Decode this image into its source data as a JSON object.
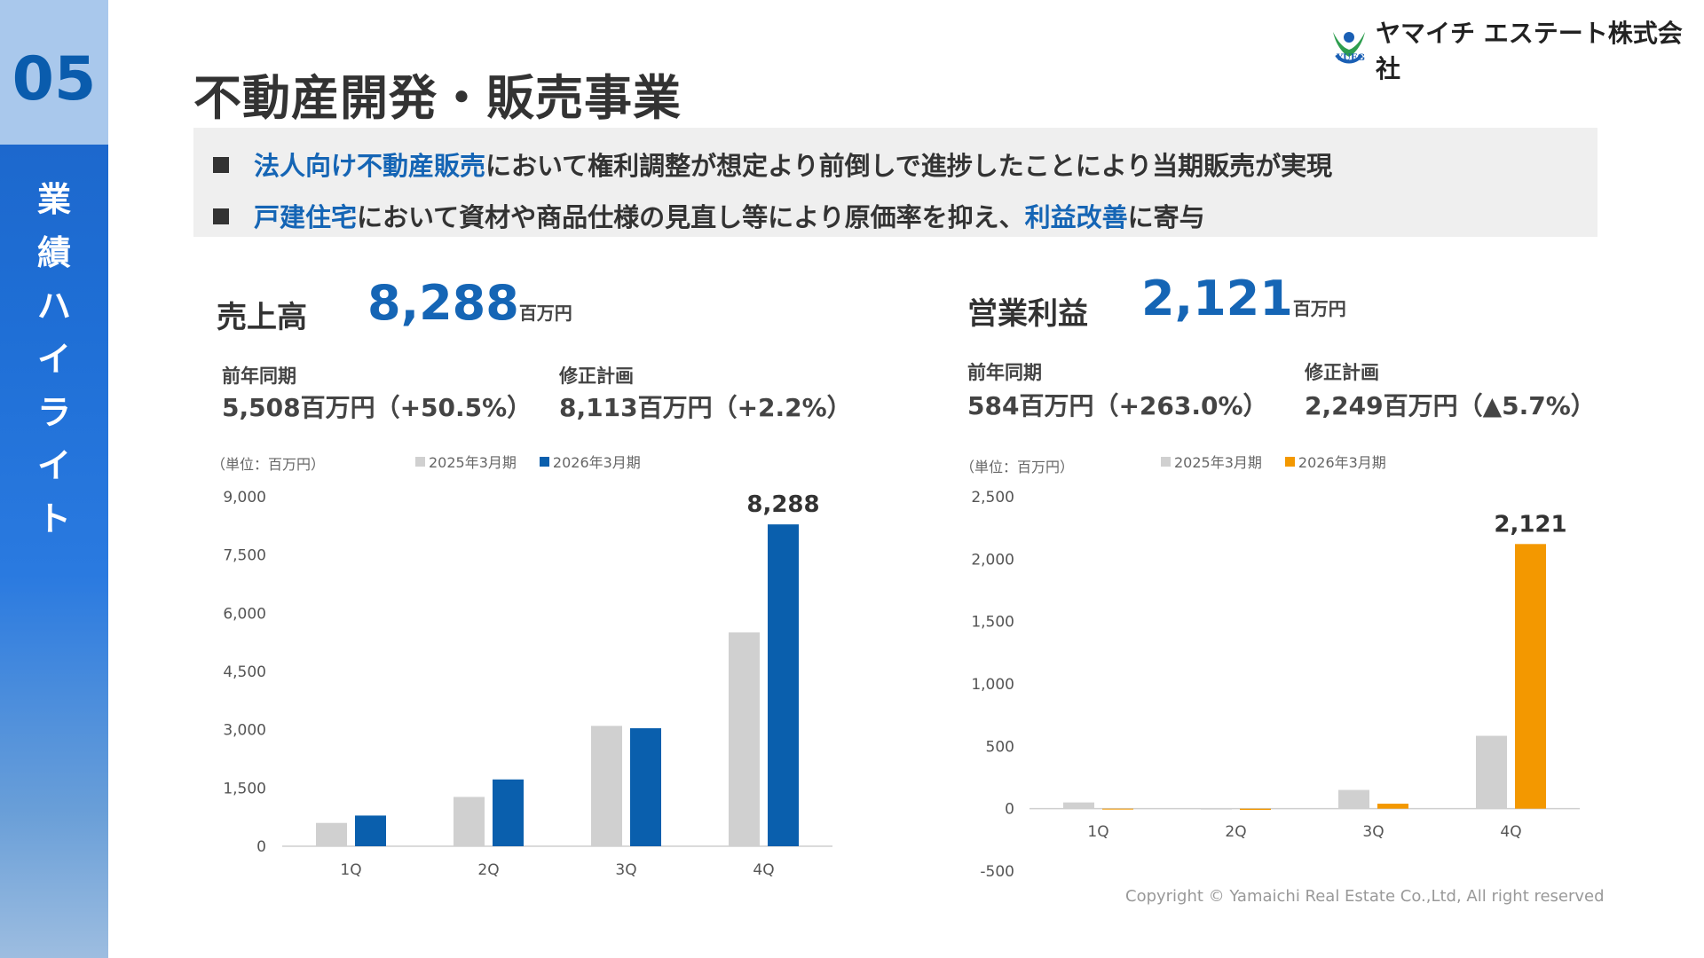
{
  "slide": {
    "section_number": "05",
    "section_vertical": [
      "業",
      "績",
      "ハ",
      "イ",
      "ラ",
      "イ",
      "ト"
    ],
    "title": "不動産開発・販売事業",
    "company_name": "ヤマイチ エステート株式会社",
    "company_abbr": "YUEG",
    "copyright": "Copyright © Yamaichi Real Estate Co.,Ltd, All right reserved"
  },
  "summary": {
    "bullet1": {
      "highlight": "法人向け不動産販売",
      "rest": "において権利調整が想定より前倒しで進捗したことにより当期販売が実現"
    },
    "bullet2": {
      "highlight1": "戸建住宅",
      "middle": "において資材や商品仕様の見直し等により原価率を抑え、",
      "highlight2": "利益改善",
      "end": "に寄与"
    }
  },
  "sales": {
    "label": "売上高",
    "value": "8,288",
    "unit": "百万円",
    "prev_label": "前年同期",
    "prev_value": "5,508百万円（+50.5%）",
    "plan_label": "修正計画",
    "plan_value": "8,113百万円（+2.2%）"
  },
  "profit": {
    "label": "営業利益",
    "value": "2,121",
    "unit": "百万円",
    "prev_label": "前年同期",
    "prev_value": "584百万円（+263.0%）",
    "plan_label": "修正計画",
    "plan_value": "2,249百万円（▲5.7%）"
  },
  "colors": {
    "blue": "#0a5fad",
    "gray": "#d0d0d0",
    "orange": "#f39800",
    "accent": "#1565b5"
  },
  "chart_data": [
    {
      "type": "bar",
      "unit_note": "（単位：百万円）",
      "categories": [
        "1Q",
        "2Q",
        "3Q",
        "4Q"
      ],
      "series": [
        {
          "name": "2025年3月期",
          "values": [
            600,
            1270,
            3100,
            5508
          ]
        },
        {
          "name": "2026年3月期",
          "values": [
            790,
            1720,
            3040,
            8288
          ]
        }
      ],
      "ylim": [
        0,
        9000
      ],
      "yticks": [
        0,
        1500,
        3000,
        4500,
        6000,
        7500,
        9000
      ],
      "ytick_labels": [
        "0",
        "1,500",
        "3,000",
        "4,500",
        "6,000",
        "7,500",
        "9,000"
      ],
      "data_label": {
        "category": "4Q",
        "series": "2026年3月期",
        "text": "8,288"
      },
      "grid": false,
      "legend": "top"
    },
    {
      "type": "bar",
      "unit_note": "（単位：百万円）",
      "categories": [
        "1Q",
        "2Q",
        "3Q",
        "4Q"
      ],
      "series": [
        {
          "name": "2025年3月期",
          "values": [
            50,
            -5,
            150,
            584
          ]
        },
        {
          "name": "2026年3月期",
          "values": [
            -5,
            -10,
            40,
            2121
          ]
        }
      ],
      "ylim": [
        -500,
        2500
      ],
      "yticks": [
        -500,
        0,
        500,
        1000,
        1500,
        2000,
        2500
      ],
      "ytick_labels": [
        "-500",
        "0",
        "500",
        "1,000",
        "1,500",
        "2,000",
        "2,500"
      ],
      "data_label": {
        "category": "4Q",
        "series": "2026年3月期",
        "text": "2,121"
      },
      "grid": false,
      "legend": "top"
    }
  ]
}
